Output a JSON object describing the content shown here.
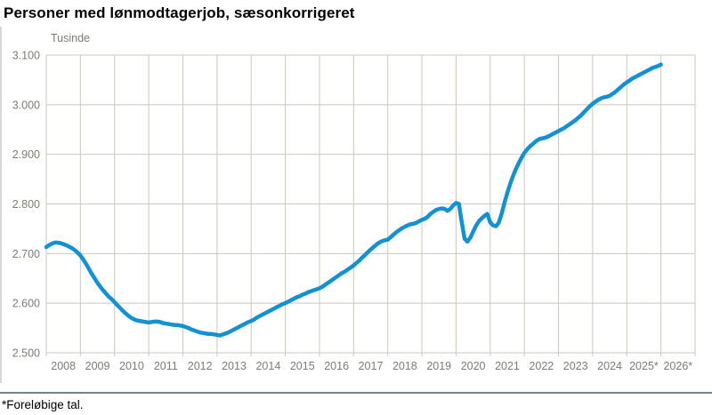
{
  "title": "Personer med lønmodtagerjob, sæsonkorrigeret",
  "footnote": "*Foreløbige tal.",
  "colors": {
    "line": "#1591d2",
    "grid": "#ccc8c0",
    "axis_text": "#7e7b73",
    "divider": "#74848d",
    "title_text": "#000000"
  },
  "chart_data": {
    "type": "line",
    "title": "Personer med lønmodtagerjob, sæsonkorrigeret",
    "ylabel": "Tusinde",
    "xlabel": "",
    "unit_label": "Tusinde",
    "grid": true,
    "legend": "none",
    "ylim": [
      2500,
      3100
    ],
    "y_tick_step": 100,
    "y_tick_labels": [
      "3.100",
      "3.000",
      "2.900",
      "2.800",
      "2.700",
      "2.600",
      "2.500"
    ],
    "x_labels": [
      "2008",
      "2009",
      "2010",
      "2011",
      "2012",
      "2013",
      "2014",
      "2015",
      "2016",
      "2017",
      "2018",
      "2019",
      "2020",
      "2021",
      "2022",
      "2023",
      "2024",
      "2025*",
      "2026*"
    ],
    "series": [
      {
        "name": "Personer med lønmodtagerjob, sæsonkorrigeret (tusinde)",
        "start": "2008-01",
        "frequency": "monthly",
        "values": [
          2713,
          2717,
          2720,
          2722,
          2722,
          2721,
          2719,
          2717,
          2714,
          2711,
          2707,
          2702,
          2696,
          2688,
          2679,
          2669,
          2659,
          2650,
          2641,
          2633,
          2626,
          2619,
          2613,
          2608,
          2602,
          2596,
          2590,
          2584,
          2579,
          2574,
          2570,
          2567,
          2565,
          2564,
          2563,
          2562,
          2561,
          2562,
          2563,
          2563,
          2562,
          2560,
          2559,
          2558,
          2557,
          2556,
          2556,
          2555,
          2554,
          2552,
          2550,
          2547,
          2545,
          2543,
          2541,
          2540,
          2539,
          2538,
          2538,
          2537,
          2536,
          2535,
          2537,
          2539,
          2541,
          2544,
          2547,
          2550,
          2553,
          2556,
          2559,
          2562,
          2564,
          2567,
          2571,
          2574,
          2577,
          2580,
          2583,
          2586,
          2589,
          2592,
          2595,
          2598,
          2600,
          2603,
          2606,
          2609,
          2612,
          2614,
          2617,
          2619,
          2622,
          2624,
          2626,
          2628,
          2630,
          2633,
          2637,
          2641,
          2645,
          2649,
          2653,
          2657,
          2661,
          2664,
          2668,
          2672,
          2676,
          2681,
          2686,
          2692,
          2697,
          2703,
          2708,
          2713,
          2718,
          2722,
          2725,
          2727,
          2728,
          2733,
          2738,
          2743,
          2747,
          2751,
          2754,
          2757,
          2759,
          2760,
          2762,
          2765,
          2768,
          2770,
          2774,
          2780,
          2784,
          2788,
          2790,
          2791,
          2790,
          2786,
          2790,
          2797,
          2802,
          2800,
          2763,
          2730,
          2724,
          2732,
          2744,
          2756,
          2765,
          2771,
          2776,
          2780,
          2763,
          2757,
          2755,
          2762,
          2780,
          2802,
          2822,
          2840,
          2856,
          2870,
          2882,
          2893,
          2903,
          2910,
          2916,
          2921,
          2926,
          2930,
          2932,
          2933,
          2935,
          2938,
          2941,
          2944,
          2947,
          2950,
          2953,
          2957,
          2961,
          2965,
          2969,
          2974,
          2979,
          2985,
          2991,
          2997,
          3002,
          3006,
          3010,
          3013,
          3015,
          3016,
          3018,
          3022,
          3026,
          3031,
          3036,
          3041,
          3045,
          3049,
          3053,
          3056,
          3059,
          3062,
          3065,
          3068,
          3071,
          3074,
          3076,
          3078,
          3081
        ]
      }
    ]
  }
}
